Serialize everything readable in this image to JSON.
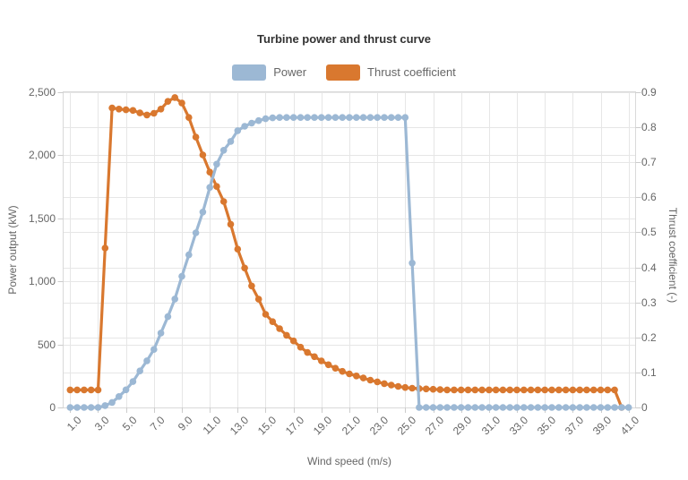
{
  "chart": {
    "title": "Turbine power and thrust curve",
    "legend": [
      {
        "label": "Power",
        "color": "#9cb8d4"
      },
      {
        "label": "Thrust coefficient",
        "color": "#d9782f"
      }
    ],
    "x_axis": {
      "title": "Wind speed (m/s)",
      "tick_labels": [
        "1.0",
        "3.0",
        "5.0",
        "7.0",
        "9.0",
        "11.0",
        "13.0",
        "15.0",
        "17.0",
        "19.0",
        "21.0",
        "23.0",
        "25.0",
        "27.0",
        "29.0",
        "31.0",
        "33.0",
        "35.0",
        "37.0",
        "39.0",
        "41.0"
      ]
    },
    "y_axis_left": {
      "title": "Power output (kW)",
      "tick_labels": [
        "0",
        "500",
        "1,000",
        "1,500",
        "2,000",
        "2,500"
      ]
    },
    "y_axis_right": {
      "title": "Thrust coefficient (-)",
      "tick_labels": [
        "0",
        "0.1",
        "0.2",
        "0.3",
        "0.4",
        "0.5",
        "0.6",
        "0.7",
        "0.8",
        "0.9"
      ]
    },
    "colors": {
      "grid": "#e6e6e6",
      "axis_border": "#d9d9d9",
      "tick": "#cccccc",
      "title_text": "#333333",
      "label_text": "#666666"
    }
  },
  "chart_data": {
    "type": "line",
    "title": "Turbine power and thrust curve",
    "xlabel": "Wind speed (m/s)",
    "ylabel_left": "Power output (kW)",
    "ylabel_right": "Thrust coefficient (-)",
    "x_range": [
      1.0,
      41.0
    ],
    "ylim_left": [
      0,
      2500
    ],
    "ylim_right": [
      0,
      0.9
    ],
    "grid": true,
    "legend_position": "top",
    "x": [
      1,
      1.5,
      2,
      2.5,
      3,
      3.5,
      4,
      4.5,
      5,
      5.5,
      6,
      6.5,
      7,
      7.5,
      8,
      8.5,
      9,
      9.5,
      10,
      10.5,
      11,
      11.5,
      12,
      12.5,
      13,
      13.5,
      14,
      14.5,
      15,
      15.5,
      16,
      16.5,
      17,
      17.5,
      18,
      18.5,
      19,
      19.5,
      20,
      20.5,
      21,
      21.5,
      22,
      22.5,
      23,
      23.5,
      24,
      24.5,
      25,
      25.5,
      26,
      26.5,
      27,
      27.5,
      28,
      28.5,
      29,
      29.5,
      30,
      30.5,
      31,
      31.5,
      32,
      32.5,
      33,
      33.5,
      34,
      34.5,
      35,
      35.5,
      36,
      36.5,
      37,
      37.5,
      38,
      38.5,
      39,
      39.5,
      40,
      40.5,
      41
    ],
    "series": [
      {
        "name": "Power",
        "axis": "left",
        "color": "#9cb8d4",
        "values": [
          0,
          0,
          0,
          0,
          0,
          15,
          40,
          87,
          140,
          205,
          290,
          370,
          460,
          590,
          720,
          860,
          1040,
          1210,
          1385,
          1550,
          1745,
          1930,
          2040,
          2110,
          2195,
          2230,
          2255,
          2275,
          2290,
          2297,
          2300,
          2300,
          2300,
          2300,
          2300,
          2300,
          2300,
          2300,
          2300,
          2300,
          2300,
          2300,
          2300,
          2300,
          2300,
          2300,
          2300,
          2300,
          2300,
          1145,
          0,
          0,
          0,
          0,
          0,
          0,
          0,
          0,
          0,
          0,
          0,
          0,
          0,
          0,
          0,
          0,
          0,
          0,
          0,
          0,
          0,
          0,
          0,
          0,
          0,
          0,
          0,
          0,
          0,
          0,
          0
        ]
      },
      {
        "name": "Thrust coefficient",
        "axis": "right",
        "color": "#d9782f",
        "values": [
          0.05,
          0.05,
          0.05,
          0.05,
          0.05,
          0.455,
          0.855,
          0.852,
          0.85,
          0.848,
          0.841,
          0.835,
          0.84,
          0.852,
          0.874,
          0.885,
          0.869,
          0.828,
          0.772,
          0.721,
          0.672,
          0.631,
          0.588,
          0.523,
          0.452,
          0.398,
          0.347,
          0.309,
          0.266,
          0.245,
          0.225,
          0.206,
          0.19,
          0.172,
          0.157,
          0.145,
          0.133,
          0.122,
          0.112,
          0.103,
          0.096,
          0.09,
          0.084,
          0.078,
          0.073,
          0.068,
          0.064,
          0.06,
          0.057,
          0.055,
          0.054,
          0.053,
          0.052,
          0.051,
          0.05,
          0.05,
          0.05,
          0.05,
          0.05,
          0.05,
          0.05,
          0.05,
          0.05,
          0.05,
          0.05,
          0.05,
          0.05,
          0.05,
          0.05,
          0.05,
          0.05,
          0.05,
          0.05,
          0.05,
          0.05,
          0.05,
          0.05,
          0.05,
          0.05,
          0,
          null
        ]
      }
    ]
  }
}
